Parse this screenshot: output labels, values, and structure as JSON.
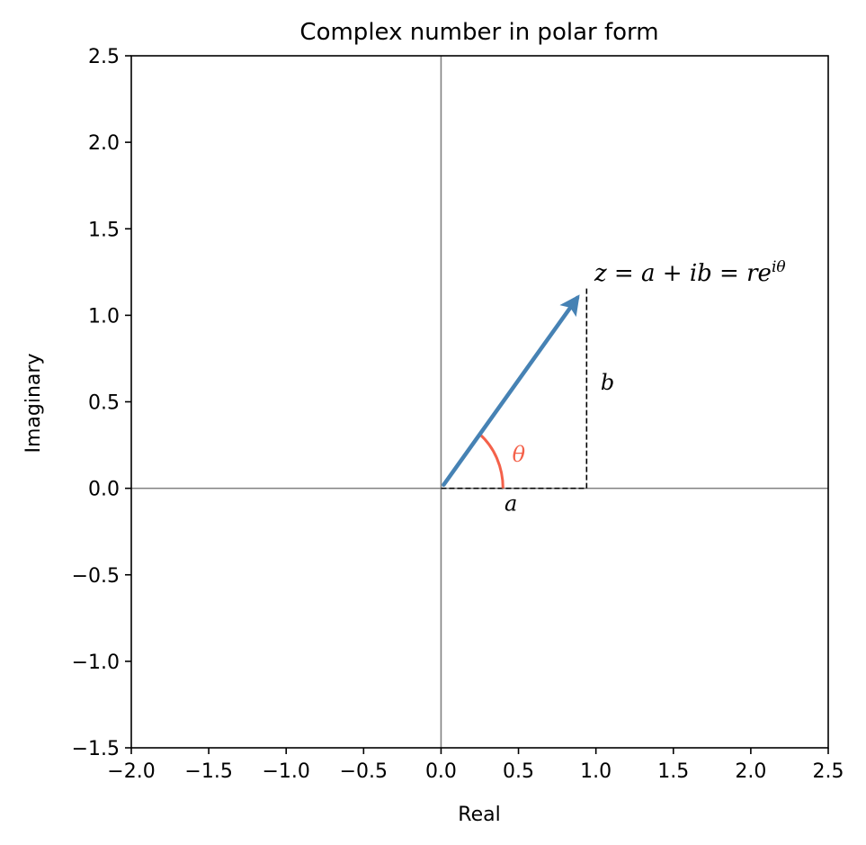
{
  "chart_data": {
    "type": "line",
    "title": "Complex number in polar form",
    "xlabel": "Real",
    "ylabel": "Imaginary",
    "xlim": [
      -2.0,
      2.5
    ],
    "ylim": [
      -1.5,
      2.5
    ],
    "xticks": [
      -2.0,
      -1.5,
      -1.0,
      -0.5,
      0.0,
      0.5,
      1.0,
      1.5,
      2.0,
      2.5
    ],
    "xtick_labels": [
      "−2.0",
      "−1.5",
      "−1.0",
      "−0.5",
      "0.0",
      "0.5",
      "1.0",
      "1.5",
      "2.0",
      "2.5"
    ],
    "yticks": [
      -1.5,
      -1.0,
      -0.5,
      0.0,
      0.5,
      1.0,
      1.5,
      2.0,
      2.5
    ],
    "ytick_labels": [
      "−1.5",
      "−1.0",
      "−0.5",
      "0.0",
      "0.5",
      "1.0",
      "1.5",
      "2.0",
      "2.5"
    ],
    "grid": false,
    "point": {
      "a": 0.94,
      "b": 1.17
    },
    "theta_arc_radius": 0.4,
    "annotations": {
      "z_label": {
        "z": "z",
        "eq1": " = ",
        "a": "a",
        "plus": " + ",
        "ib": "ib",
        "eq2": " = ",
        "r": "re",
        "exp": "iθ"
      },
      "theta": "θ",
      "a_label": "a",
      "b_label": "b"
    },
    "colors": {
      "vector": "#4682b4",
      "angle": "#f4614a",
      "axes_lines": "#808080",
      "dashed": "#000000"
    }
  }
}
